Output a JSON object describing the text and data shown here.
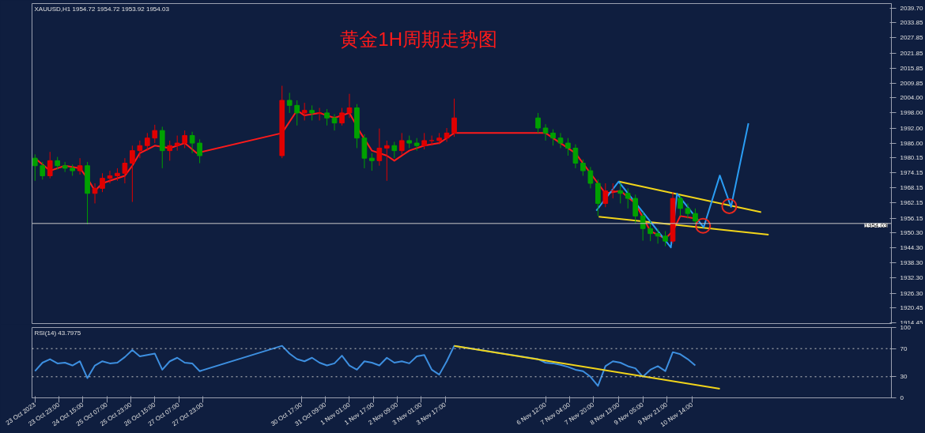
{
  "chart_data": [
    {
      "type": "candlestick",
      "title": "黄金1H周期走势图",
      "annotations": [
        "XAUUSD,H1  1954.72 1954.72 1953.92 1954.03"
      ],
      "colors": [
        "#00a000",
        "#00a000",
        "#e00000",
        "#00a000",
        "#00a000",
        "#00a000",
        "#e00000",
        "#00a000",
        "#e00000",
        "#e00000",
        "#e00000",
        "#e00000",
        "#e00000",
        "#e00000",
        "#e00000",
        "#e00000",
        "#e00000",
        "#00a000",
        "#e00000",
        "#e00000",
        "#e00000",
        "#00a000",
        "#00a000",
        "#e00000",
        "#00a000",
        "#00a000",
        "#e00000",
        "#00a000",
        "#e00000",
        "#00a000",
        "#00a000",
        "#e00000",
        "#e00000",
        "#00a000",
        "#00a000",
        "#00a000",
        "#e00000",
        "#e00000",
        "#00a000",
        "#e00000",
        "#00a000",
        "#00a000",
        "#e00000",
        "#e00000",
        "#e00000",
        "#e00000",
        "#e00000",
        "#00a000",
        "#00a000",
        "#00a000",
        "#00a000",
        "#00a000",
        "#00a000",
        "#00a000",
        "#00a000",
        "#00a000",
        "#e00000",
        "#e00000",
        "#00a000",
        "#00a000",
        "#00a000",
        "#00a000",
        "#00a000",
        "#00a000",
        "#00a000",
        "#e00000",
        "#00a000",
        "#00a000",
        "#00a000"
      ],
      "x": [
        "2023-10-23T07:00",
        "2023-10-23T12:00",
        "2023-10-23T17:00",
        "2023-10-23T22:00",
        "2023-10-24T03:00",
        "2023-10-24T08:00",
        "2023-10-24T13:00",
        "2023-10-24T18:00",
        "2023-10-24T23:00",
        "2023-10-25T04:00",
        "2023-10-25T09:00",
        "2023-10-25T14:00",
        "2023-10-25T19:00",
        "2023-10-26T00:00",
        "2023-10-26T05:00",
        "2023-10-26T10:00",
        "2023-10-26T15:00",
        "2023-10-26T20:00",
        "2023-10-27T01:00",
        "2023-10-27T06:00",
        "2023-10-27T11:00",
        "2023-10-27T16:00",
        "2023-10-27T21:00",
        "2023-10-30T04:00",
        "2023-10-30T09:00",
        "2023-10-30T14:00",
        "2023-10-30T19:00",
        "2023-10-31T00:00",
        "2023-10-31T05:00",
        "2023-10-31T10:00",
        "2023-10-31T15:00",
        "2023-10-31T20:00",
        "2023-11-01T01:00",
        "2023-11-01T06:00",
        "2023-11-01T11:00",
        "2023-11-01T16:00",
        "2023-11-01T21:00",
        "2023-11-02T02:00",
        "2023-11-02T07:00",
        "2023-11-02T12:00",
        "2023-11-02T17:00",
        "2023-11-02T22:00",
        "2023-11-03T03:00",
        "2023-11-03T08:00",
        "2023-11-03T13:00",
        "2023-11-03T18:00",
        "2023-11-03T23:00",
        "2023-11-06T07:00",
        "2023-11-06T12:00",
        "2023-11-06T17:00",
        "2023-11-06T22:00",
        "2023-11-07T03:00",
        "2023-11-07T08:00",
        "2023-11-07T13:00",
        "2023-11-07T18:00",
        "2023-11-07T23:00",
        "2023-11-08T04:00",
        "2023-11-08T09:00",
        "2023-11-08T14:00",
        "2023-11-08T19:00",
        "2023-11-09T00:00",
        "2023-11-09T05:00",
        "2023-11-09T10:00",
        "2023-11-09T15:00",
        "2023-11-09T20:00",
        "2023-11-10T01:00",
        "2023-11-10T06:00",
        "2023-11-10T11:00",
        "2023-11-10T16:00"
      ],
      "ohlc": [
        [
          1980,
          1981.5,
          1971,
          1977
        ],
        [
          1977,
          1978.5,
          1971.5,
          1973
        ],
        [
          1973,
          1982.5,
          1972,
          1979
        ],
        [
          1979,
          1980.5,
          1975.5,
          1977
        ],
        [
          1977,
          1978.5,
          1974.5,
          1976
        ],
        [
          1976,
          1977.5,
          1973,
          1975
        ],
        [
          1975,
          1980,
          1973.5,
          1977
        ],
        [
          1977,
          1978.5,
          1953.7,
          1966
        ],
        [
          1966,
          1970,
          1962,
          1968
        ],
        [
          1968,
          1974,
          1966.5,
          1972
        ],
        [
          1972,
          1975,
          1970,
          1973
        ],
        [
          1973,
          1976,
          1971,
          1974
        ],
        [
          1974,
          1980,
          1970,
          1978
        ],
        [
          1978,
          1985,
          1962.6,
          1983
        ],
        [
          1983,
          1987,
          1980,
          1985
        ],
        [
          1985,
          1990,
          1983,
          1988
        ],
        [
          1988,
          1993.3,
          1986,
          1991
        ],
        [
          1991,
          1992.5,
          1976,
          1983
        ],
        [
          1983,
          1987,
          1979,
          1985
        ],
        [
          1985,
          1989,
          1983,
          1986
        ],
        [
          1986,
          1991,
          1984,
          1989
        ],
        [
          1989,
          1990.5,
          1982,
          1986
        ],
        [
          1986,
          1987.5,
          1978,
          1981
        ],
        [
          1981,
          2008.8,
          1980,
          2003
        ],
        [
          2003,
          2006,
          1998,
          2001
        ],
        [
          2001,
          2003,
          1993,
          1998
        ],
        [
          1998,
          2002,
          1995,
          1999
        ],
        [
          1999,
          2001,
          1995,
          1998
        ],
        [
          1998,
          2000,
          1995,
          1998
        ],
        [
          1998,
          1999.5,
          1993,
          1996
        ],
        [
          1996,
          1997.5,
          1991,
          1994
        ],
        [
          1994,
          2000,
          1993,
          1998
        ],
        [
          1998,
          2005.6,
          1996,
          2000
        ],
        [
          2000,
          2001.5,
          1984,
          1988
        ],
        [
          1988,
          1989.5,
          1976,
          1980
        ],
        [
          1980,
          1982,
          1975,
          1979
        ],
        [
          1979,
          1991.8,
          1977,
          1984
        ],
        [
          1984,
          1987,
          1971,
          1985
        ],
        [
          1985,
          1986.5,
          1980,
          1983
        ],
        [
          1983,
          1990,
          1981.5,
          1987
        ],
        [
          1987,
          1989,
          1984,
          1986
        ],
        [
          1986,
          1988,
          1983,
          1985
        ],
        [
          1985,
          1990,
          1983.5,
          1987
        ],
        [
          1987,
          1989,
          1985,
          1987
        ],
        [
          1987,
          1990,
          1985.5,
          1988
        ],
        [
          1988,
          1992,
          1986.5,
          1990
        ],
        [
          1990,
          2003.7,
          1988.5,
          1996
        ],
        [
          1996,
          1998,
          1990,
          1992
        ],
        [
          1992,
          1993.5,
          1987,
          1990
        ],
        [
          1990,
          1991.5,
          1985,
          1988
        ],
        [
          1988,
          1990,
          1984,
          1986
        ],
        [
          1986,
          1988,
          1981,
          1984
        ],
        [
          1984,
          1985.5,
          1976,
          1978
        ],
        [
          1978,
          1979.5,
          1973,
          1975
        ],
        [
          1975,
          1976.5,
          1968,
          1970
        ],
        [
          1970,
          1971.5,
          1957,
          1962
        ],
        [
          1962,
          1970,
          1960.5,
          1967
        ],
        [
          1967,
          1970,
          1964,
          1967
        ],
        [
          1967,
          1970,
          1962,
          1966
        ],
        [
          1966,
          1968,
          1960,
          1964
        ],
        [
          1964,
          1965.5,
          1954,
          1957
        ],
        [
          1957,
          1958.5,
          1947.2,
          1952
        ],
        [
          1952,
          1955,
          1947,
          1950
        ],
        [
          1950,
          1952,
          1946,
          1949
        ],
        [
          1949,
          1951,
          1945,
          1947
        ],
        [
          1947,
          1966.5,
          1946,
          1964
        ],
        [
          1964,
          1965,
          1957,
          1960
        ],
        [
          1960,
          1962,
          1956,
          1958
        ],
        [
          1958,
          1960,
          1953.5,
          1955
        ]
      ],
      "series": [
        {
          "type": "line",
          "color": "#ff1a1a",
          "x": [
            "2023-10-23T07:00",
            "2023-10-23T17:00",
            "2023-10-24T03:00",
            "2023-10-24T13:00",
            "2023-10-24T18:00",
            "2023-10-24T23:00",
            "2023-10-25T04:00",
            "2023-10-25T09:00",
            "2023-10-25T19:00",
            "2023-10-26T00:00",
            "2023-10-26T05:00",
            "2023-10-26T15:00",
            "2023-10-27T01:00",
            "2023-10-27T11:00",
            "2023-10-27T19:00",
            "2023-10-30T04:00",
            "2023-10-30T14:00",
            "2023-10-30T19:00",
            "2023-10-31T05:00",
            "2023-10-31T15:00",
            "2023-11-01T01:00",
            "2023-11-01T08:30",
            "2023-11-01T16:00",
            "2023-11-02T02:00",
            "2023-11-02T07:00",
            "2023-11-02T17:00",
            "2023-11-03T03:00",
            "2023-11-03T13:00",
            "2023-11-03T18:00",
            "2023-11-03T23:00",
            "2023-11-06T12:00",
            "2023-11-06T22:00",
            "2023-11-07T08:00",
            "2023-11-07T18:00",
            "2023-11-08T04:00",
            "2023-11-08T14:00",
            "2023-11-09T00:00",
            "2023-11-09T10:00",
            "2023-11-09T20:00",
            "2023-11-10T01:00",
            "2023-11-10T06:00",
            "2023-11-10T16:00"
          ],
          "values": [
            1980,
            1975,
            1977,
            1976,
            1972,
            1967,
            1970,
            1971,
            1973,
            1977,
            1982,
            1985,
            1984,
            1986,
            1982,
            1990,
            1999,
            1997,
            1998,
            1996,
            1998,
            1990,
            1983,
            1981,
            1979,
            1983,
            1985,
            1986,
            1988,
            1990,
            1990,
            1986,
            1982,
            1974,
            1966,
            1967,
            1962,
            1951,
            1948,
            1951,
            1957,
            1956
          ]
        },
        {
          "type": "line",
          "color": "#f2d51a",
          "x": [
            "2023-11-08T13:00",
            "2023-11-12T12:00"
          ],
          "values": [
            1970.7,
            1958.5
          ]
        },
        {
          "type": "line",
          "color": "#f2d51a",
          "x": [
            "2023-11-07T23:30",
            "2023-11-12T17:00"
          ],
          "values": [
            1956.7,
            1949.6
          ]
        },
        {
          "type": "line",
          "color": "#2a9df4",
          "x": [
            "2023-11-07T21:54",
            "2023-11-08T12:48",
            "2023-11-09T23:42",
            "2023-11-10T03:48",
            "2023-11-10T21:36",
            "2023-11-11T08:24",
            "2023-11-11T15:54",
            "2023-11-12T03:30"
          ],
          "values": [
            1959.1,
            1970.7,
            1944.5,
            1965.9,
            1952.5,
            1973.1,
            1960.6,
            1993.9
          ]
        },
        {
          "type": "scatter",
          "marker": "circle",
          "color": "#e8281e",
          "x": [
            "2023-11-10T21:12",
            "2023-11-11T14:42"
          ],
          "values": [
            1953.1,
            1960.9
          ]
        }
      ],
      "ref_lines": [
        {
          "axis": "y",
          "value": 1954.03,
          "label": "1954.03",
          "color": "#c8c8c8",
          "line_style": "solid"
        }
      ],
      "xlim": [
        "2023-10-23T05:00",
        "2023-11-16T03:00"
      ],
      "ylim": [
        1913.9,
        2041.5
      ],
      "yticks": [
        {
          "value": 2039.7,
          "label": "2039.70"
        },
        2033.85,
        2027.85,
        2021.85,
        2015.85,
        2009.85,
        {
          "value": 2004,
          "label": "2004.00"
        },
        {
          "value": 1998,
          "label": "1998.00"
        },
        {
          "value": 1992,
          "label": "1992.00"
        },
        {
          "value": 1986,
          "label": "1986.00"
        },
        1980.15,
        1974.15,
        1968.15,
        1962.15,
        1956.15,
        {
          "value": 1950.3,
          "label": "1950.30"
        },
        {
          "value": 1944.3,
          "label": "1944.30"
        },
        {
          "value": 1938.3,
          "label": "1938.30"
        },
        {
          "value": 1932.3,
          "label": "1932.30"
        },
        {
          "value": 1926.3,
          "label": "1926.30"
        },
        1920.45,
        1914.45
      ],
      "tick_labels": "y"
    },
    {
      "type": "line",
      "annotations": [
        "RSI(14) 43.7975"
      ],
      "x": [
        "2023-10-23T07:00",
        "2023-10-23T12:00",
        "2023-10-23T17:00",
        "2023-10-23T22:00",
        "2023-10-24T03:00",
        "2023-10-24T08:00",
        "2023-10-24T13:00",
        "2023-10-24T18:00",
        "2023-10-24T23:00",
        "2023-10-25T04:00",
        "2023-10-25T09:00",
        "2023-10-25T14:00",
        "2023-10-25T19:00",
        "2023-10-26T00:00",
        "2023-10-26T05:00",
        "2023-10-26T10:00",
        "2023-10-26T15:00",
        "2023-10-26T20:00",
        "2023-10-27T01:00",
        "2023-10-27T06:00",
        "2023-10-27T11:00",
        "2023-10-27T16:00",
        "2023-10-27T21:00",
        "2023-10-30T04:00",
        "2023-10-30T09:00",
        "2023-10-30T14:00",
        "2023-10-30T19:00",
        "2023-10-31T00:00",
        "2023-10-31T05:00",
        "2023-10-31T10:00",
        "2023-10-31T15:00",
        "2023-10-31T20:00",
        "2023-11-01T01:00",
        "2023-11-01T06:00",
        "2023-11-01T11:00",
        "2023-11-01T16:00",
        "2023-11-01T21:00",
        "2023-11-02T02:00",
        "2023-11-02T07:00",
        "2023-11-02T12:00",
        "2023-11-02T17:00",
        "2023-11-02T22:00",
        "2023-11-03T03:00",
        "2023-11-03T08:00",
        "2023-11-03T13:00",
        "2023-11-03T18:00",
        "2023-11-03T23:00",
        "2023-11-06T07:00",
        "2023-11-06T12:00",
        "2023-11-06T17:00",
        "2023-11-06T22:00",
        "2023-11-07T03:00",
        "2023-11-07T08:00",
        "2023-11-07T13:00",
        "2023-11-07T18:00",
        "2023-11-07T23:00",
        "2023-11-08T04:00",
        "2023-11-08T09:00",
        "2023-11-08T14:00",
        "2023-11-08T19:00",
        "2023-11-09T00:00",
        "2023-11-09T05:00",
        "2023-11-09T10:00",
        "2023-11-09T15:00",
        "2023-11-09T20:00",
        "2023-11-10T01:00",
        "2023-11-10T06:00",
        "2023-11-10T11:00",
        "2023-11-10T16:00"
      ],
      "series": [
        {
          "color": "#3d8fe0",
          "values": [
            38,
            50,
            55,
            49,
            50,
            46,
            52,
            28,
            46,
            52,
            49,
            50,
            58,
            68,
            59,
            61,
            63,
            40,
            52,
            57,
            50,
            49,
            38,
            74,
            63,
            55,
            52,
            57,
            50,
            46,
            49,
            60,
            46,
            40,
            52,
            50,
            46,
            57,
            50,
            52,
            49,
            59,
            61,
            40,
            33,
            52,
            74,
            55,
            50,
            49,
            47,
            44,
            40,
            38,
            30,
            17,
            45,
            52,
            50,
            45,
            42,
            30,
            40,
            45,
            38,
            65,
            62,
            55,
            46
          ]
        },
        {
          "color": "#f2d51a",
          "x": [
            "2023-11-03T23:00",
            "2023-11-11T08:24"
          ],
          "values": [
            74,
            13
          ]
        }
      ],
      "ref_lines": [
        {
          "axis": "y",
          "value": 30,
          "color": "#c8c8c8",
          "line_style": "dotted"
        },
        {
          "axis": "y",
          "value": 70,
          "color": "#c8c8c8",
          "line_style": "dotted"
        }
      ],
      "xlim": [
        "2023-10-23T05:00",
        "2023-11-16T03:00"
      ],
      "ylim": [
        0,
        100
      ],
      "yticks": [
        0,
        30,
        70,
        100
      ],
      "xticks": [
        {
          "value": "2023-10-23T07:00",
          "label": "23 Oct 2023"
        },
        {
          "value": "2023-10-23T23:00",
          "label": "23 Oct 23:00"
        },
        {
          "value": "2023-10-24T15:00",
          "label": "24 Oct 15:00"
        },
        {
          "value": "2023-10-25T07:00",
          "label": "25 Oct 07:00"
        },
        {
          "value": "2023-10-25T23:00",
          "label": "25 Oct 23:00"
        },
        {
          "value": "2023-10-26T15:00",
          "label": "26 Oct 15:00"
        },
        {
          "value": "2023-10-27T07:00",
          "label": "27 Oct 07:00"
        },
        {
          "value": "2023-10-27T23:00",
          "label": "27 Oct 23:00"
        },
        {
          "value": "2023-10-30T17:00",
          "label": "30 Oct 17:00"
        },
        {
          "value": "2023-10-31T09:00",
          "label": "31 Oct 09:00"
        },
        {
          "value": "2023-11-01T01:00",
          "label": "1 Nov 01:00"
        },
        {
          "value": "2023-11-01T17:00",
          "label": "1 Nov 17:00"
        },
        {
          "value": "2023-11-02T09:00",
          "label": "2 Nov 09:00"
        },
        {
          "value": "2023-11-03T01:00",
          "label": "3 Nov 01:00"
        },
        {
          "value": "2023-11-03T17:00",
          "label": "3 Nov 17:00"
        },
        {
          "value": "2023-11-06T12:00",
          "label": "6 Nov 12:00"
        },
        {
          "value": "2023-11-07T04:00",
          "label": "7 Nov 04:00"
        },
        {
          "value": "2023-11-07T20:00",
          "label": "7 Nov 20:00"
        },
        {
          "value": "2023-11-08T13:00",
          "label": "8 Nov 13:00"
        },
        {
          "value": "2023-11-09T05:00",
          "label": "9 Nov 05:00"
        },
        {
          "value": "2023-11-09T21:00",
          "label": "9 Nov 21:00"
        },
        {
          "value": "2023-11-10T14:00",
          "label": "10 Nov 14:00"
        }
      ]
    }
  ]
}
